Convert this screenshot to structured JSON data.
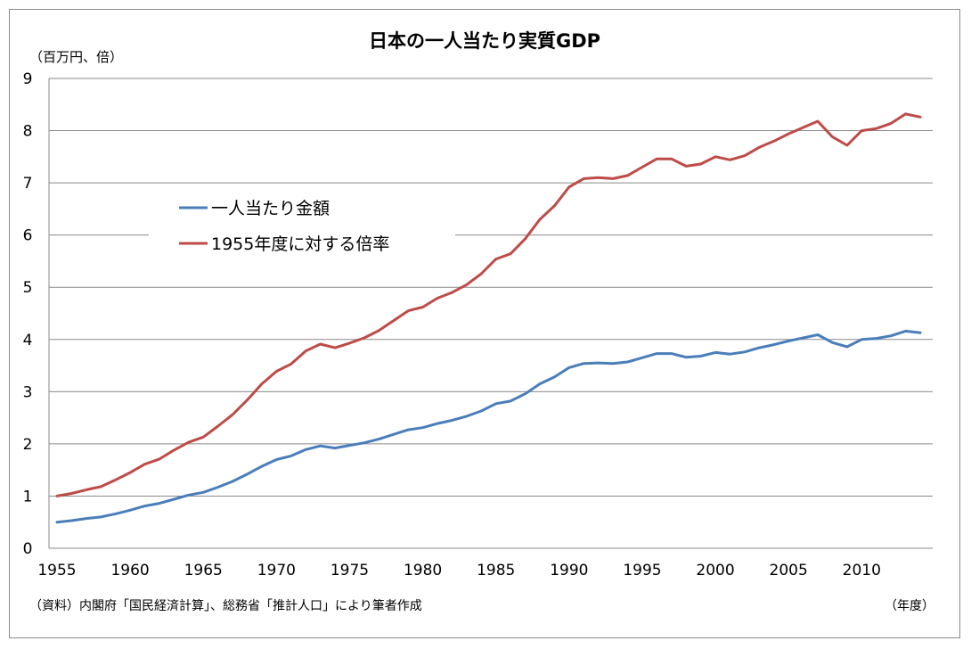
{
  "chart_data": {
    "type": "line",
    "title": "日本の一人当たり実質GDP",
    "ylabel": "（百万円、倍）",
    "xlabel": "（年度）",
    "source_note": "（資料）内閣府「国民経済計算」、総務省「推計人口」により筆者作成",
    "ylim": [
      0,
      9
    ],
    "yticks": [
      0,
      1,
      2,
      3,
      4,
      5,
      6,
      7,
      8,
      9
    ],
    "xlim": [
      1955,
      2014
    ],
    "xticks": [
      1955,
      1960,
      1965,
      1970,
      1975,
      1980,
      1985,
      1990,
      1995,
      2000,
      2005,
      2010
    ],
    "grid": "horizontal",
    "legend_position": "upper-left inside",
    "x": [
      1955,
      1956,
      1957,
      1958,
      1959,
      1960,
      1961,
      1962,
      1963,
      1964,
      1965,
      1966,
      1967,
      1968,
      1969,
      1970,
      1971,
      1972,
      1973,
      1974,
      1975,
      1976,
      1977,
      1978,
      1979,
      1980,
      1981,
      1982,
      1983,
      1984,
      1985,
      1986,
      1987,
      1988,
      1989,
      1990,
      1991,
      1992,
      1993,
      1994,
      1995,
      1996,
      1997,
      1998,
      1999,
      2000,
      2001,
      2002,
      2003,
      2004,
      2005,
      2006,
      2007,
      2008,
      2009,
      2010,
      2011,
      2012,
      2013,
      2014
    ],
    "series": [
      {
        "name": "一人当たり金額",
        "color": "#4a7ebb",
        "values": [
          0.5,
          0.53,
          0.57,
          0.6,
          0.66,
          0.73,
          0.81,
          0.86,
          0.94,
          1.02,
          1.07,
          1.17,
          1.28,
          1.42,
          1.57,
          1.7,
          1.77,
          1.89,
          1.96,
          1.92,
          1.97,
          2.02,
          2.09,
          2.18,
          2.27,
          2.31,
          2.39,
          2.45,
          2.53,
          2.63,
          2.77,
          2.82,
          2.96,
          3.15,
          3.28,
          3.46,
          3.54,
          3.55,
          3.54,
          3.57,
          3.65,
          3.73,
          3.73,
          3.66,
          3.68,
          3.75,
          3.72,
          3.76,
          3.84,
          3.9,
          3.97,
          4.03,
          4.09,
          3.94,
          3.86,
          4.0,
          4.02,
          4.07,
          4.16,
          4.13
        ]
      },
      {
        "name": "1955年度に対する倍率",
        "color": "#be4b48",
        "values": [
          1.0,
          1.05,
          1.12,
          1.18,
          1.31,
          1.45,
          1.61,
          1.71,
          1.88,
          2.03,
          2.13,
          2.34,
          2.56,
          2.84,
          3.15,
          3.39,
          3.53,
          3.78,
          3.91,
          3.84,
          3.93,
          4.03,
          4.17,
          4.36,
          4.55,
          4.62,
          4.79,
          4.9,
          5.05,
          5.26,
          5.54,
          5.64,
          5.93,
          6.3,
          6.56,
          6.92,
          7.08,
          7.1,
          7.08,
          7.14,
          7.3,
          7.46,
          7.46,
          7.32,
          7.36,
          7.5,
          7.44,
          7.52,
          7.68,
          7.8,
          7.94,
          8.06,
          8.18,
          7.88,
          7.72,
          8.0,
          8.04,
          8.14,
          8.32,
          8.26
        ]
      }
    ]
  }
}
